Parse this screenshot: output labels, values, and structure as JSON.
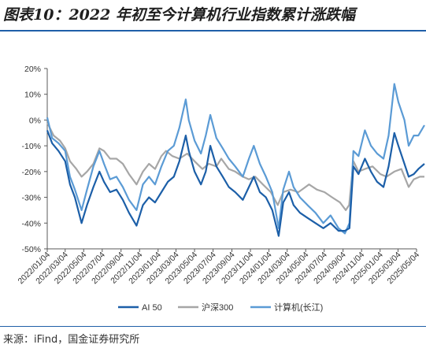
{
  "header": {
    "title": "图表10：2022 年初至今计算机行业指数累计涨跌幅"
  },
  "footer": {
    "source": "来源：iFind，国金证券研究所"
  },
  "colors": {
    "rule": "#1f5fa8",
    "ai50": "#1c5fa8",
    "hs300": "#a6a6a6",
    "computer": "#5b9bd5"
  },
  "chart_data": {
    "type": "line",
    "ylabel": "",
    "xlabel": "",
    "ylim": [
      -50,
      20
    ],
    "yticks": [
      "20%",
      "10%",
      "0%",
      "-10%",
      "-20%",
      "-30%",
      "-40%",
      "-50%"
    ],
    "ytick_values": [
      20,
      10,
      0,
      -10,
      -20,
      -30,
      -40,
      -50
    ],
    "xticks": [
      "2022/01/04",
      "2022/03/04",
      "2022/05/04",
      "2022/07/04",
      "2022/09/04",
      "2022/11/04",
      "2023/01/04",
      "2023/03/04",
      "2023/05/04",
      "2023/07/04",
      "2023/09/04",
      "2023/11/04",
      "2024/01/04",
      "2024/03/04",
      "2024/05/04",
      "2024/07/04",
      "2024/09/04",
      "2024/11/04",
      "2025/01/04",
      "2025/03/04",
      "2025/05/04"
    ],
    "grid": false,
    "legend_position": "bottom",
    "series": [
      {
        "name": "AI 50",
        "color": "#1c5fa8",
        "points": [
          [
            "2022/01/04",
            -4
          ],
          [
            "2022/01/20",
            -9
          ],
          [
            "2022/02/10",
            -12
          ],
          [
            "2022/03/04",
            -16
          ],
          [
            "2022/03/20",
            -25
          ],
          [
            "2022/04/05",
            -30
          ],
          [
            "2022/04/27",
            -40
          ],
          [
            "2022/05/15",
            -33
          ],
          [
            "2022/06/05",
            -26
          ],
          [
            "2022/06/25",
            -20
          ],
          [
            "2022/07/10",
            -24
          ],
          [
            "2022/07/30",
            -28
          ],
          [
            "2022/08/20",
            -27
          ],
          [
            "2022/09/10",
            -31
          ],
          [
            "2022/09/30",
            -36
          ],
          [
            "2022/10/25",
            -41
          ],
          [
            "2022/11/15",
            -33
          ],
          [
            "2022/12/05",
            -30
          ],
          [
            "2022/12/25",
            -32
          ],
          [
            "2023/01/15",
            -28
          ],
          [
            "2023/02/05",
            -24
          ],
          [
            "2023/02/25",
            -22
          ],
          [
            "2023/03/15",
            -16
          ],
          [
            "2023/04/05",
            -6
          ],
          [
            "2023/04/15",
            -12
          ],
          [
            "2023/05/04",
            -20
          ],
          [
            "2023/05/25",
            -25
          ],
          [
            "2023/06/10",
            -20
          ],
          [
            "2023/06/25",
            -10
          ],
          [
            "2023/07/15",
            -18
          ],
          [
            "2023/08/05",
            -22
          ],
          [
            "2023/08/25",
            -26
          ],
          [
            "2023/09/15",
            -28
          ],
          [
            "2023/10/10",
            -31
          ],
          [
            "2023/10/30",
            -26
          ],
          [
            "2023/11/15",
            -22
          ],
          [
            "2023/12/05",
            -28
          ],
          [
            "2023/12/25",
            -30
          ],
          [
            "2024/01/15",
            -35
          ],
          [
            "2024/02/05",
            -45
          ],
          [
            "2024/02/20",
            -32
          ],
          [
            "2024/03/10",
            -28
          ],
          [
            "2024/03/25",
            -33
          ],
          [
            "2024/04/15",
            -36
          ],
          [
            "2024/05/10",
            -38
          ],
          [
            "2024/06/05",
            -40
          ],
          [
            "2024/07/01",
            -42
          ],
          [
            "2024/07/25",
            -40
          ],
          [
            "2024/08/20",
            -43
          ],
          [
            "2024/09/10",
            -43
          ],
          [
            "2024/09/25",
            -42
          ],
          [
            "2024/10/08",
            -18
          ],
          [
            "2024/10/25",
            -21
          ],
          [
            "2024/11/15",
            -15
          ],
          [
            "2024/12/05",
            -20
          ],
          [
            "2024/12/25",
            -24
          ],
          [
            "2025/01/15",
            -26
          ],
          [
            "2025/02/01",
            -18
          ],
          [
            "2025/02/20",
            -5
          ],
          [
            "2025/03/05",
            -10
          ],
          [
            "2025/03/25",
            -17
          ],
          [
            "2025/04/08",
            -22
          ],
          [
            "2025/04/25",
            -21
          ],
          [
            "2025/05/10",
            -19
          ],
          [
            "2025/05/30",
            -17
          ]
        ]
      },
      {
        "name": "沪深300",
        "color": "#a6a6a6",
        "points": [
          [
            "2022/01/04",
            -1
          ],
          [
            "2022/01/25",
            -6
          ],
          [
            "2022/02/15",
            -8
          ],
          [
            "2022/03/04",
            -11
          ],
          [
            "2022/03/20",
            -16
          ],
          [
            "2022/04/10",
            -19
          ],
          [
            "2022/04/27",
            -22
          ],
          [
            "2022/05/15",
            -20
          ],
          [
            "2022/06/05",
            -17
          ],
          [
            "2022/06/25",
            -11
          ],
          [
            "2022/07/10",
            -12
          ],
          [
            "2022/07/30",
            -15
          ],
          [
            "2022/08/20",
            -15
          ],
          [
            "2022/09/10",
            -17
          ],
          [
            "2022/09/30",
            -21
          ],
          [
            "2022/10/25",
            -25
          ],
          [
            "2022/11/15",
            -20
          ],
          [
            "2022/12/05",
            -17
          ],
          [
            "2022/12/25",
            -19
          ],
          [
            "2023/01/15",
            -14
          ],
          [
            "2023/01/30",
            -12
          ],
          [
            "2023/02/20",
            -14
          ],
          [
            "2023/03/15",
            -15
          ],
          [
            "2023/04/10",
            -13
          ],
          [
            "2023/05/04",
            -16
          ],
          [
            "2023/05/30",
            -19
          ],
          [
            "2023/06/20",
            -17
          ],
          [
            "2023/07/15",
            -18
          ],
          [
            "2023/07/31",
            -15
          ],
          [
            "2023/08/25",
            -19
          ],
          [
            "2023/09/15",
            -20
          ],
          [
            "2023/10/10",
            -22
          ],
          [
            "2023/10/30",
            -23
          ],
          [
            "2023/11/20",
            -22
          ],
          [
            "2023/12/15",
            -25
          ],
          [
            "2024/01/10",
            -28
          ],
          [
            "2024/02/02",
            -33
          ],
          [
            "2024/02/20",
            -28
          ],
          [
            "2024/03/15",
            -27
          ],
          [
            "2024/04/10",
            -28
          ],
          [
            "2024/05/15",
            -25
          ],
          [
            "2024/06/10",
            -27
          ],
          [
            "2024/07/05",
            -28
          ],
          [
            "2024/07/30",
            -30
          ],
          [
            "2024/08/25",
            -32
          ],
          [
            "2024/09/13",
            -35
          ],
          [
            "2024/09/24",
            -33
          ],
          [
            "2024/10/08",
            -16
          ],
          [
            "2024/10/25",
            -20
          ],
          [
            "2024/11/15",
            -19
          ],
          [
            "2024/12/10",
            -18
          ],
          [
            "2025/01/05",
            -21
          ],
          [
            "2025/01/25",
            -22
          ],
          [
            "2025/02/20",
            -20
          ],
          [
            "2025/03/15",
            -19
          ],
          [
            "2025/04/08",
            -26
          ],
          [
            "2025/04/25",
            -23
          ],
          [
            "2025/05/15",
            -22
          ],
          [
            "2025/05/30",
            -22
          ]
        ]
      },
      {
        "name": "计算机(长江)",
        "color": "#5b9bd5",
        "points": [
          [
            "2022/01/04",
            1
          ],
          [
            "2022/01/20",
            -7
          ],
          [
            "2022/02/10",
            -9
          ],
          [
            "2022/03/04",
            -12
          ],
          [
            "2022/03/20",
            -22
          ],
          [
            "2022/04/05",
            -27
          ],
          [
            "2022/04/27",
            -35
          ],
          [
            "2022/05/15",
            -27
          ],
          [
            "2022/06/05",
            -18
          ],
          [
            "2022/06/25",
            -12
          ],
          [
            "2022/07/10",
            -17
          ],
          [
            "2022/07/30",
            -23
          ],
          [
            "2022/08/20",
            -22
          ],
          [
            "2022/09/10",
            -26
          ],
          [
            "2022/09/30",
            -31
          ],
          [
            "2022/10/25",
            -35
          ],
          [
            "2022/11/15",
            -25
          ],
          [
            "2022/12/05",
            -22
          ],
          [
            "2022/12/25",
            -25
          ],
          [
            "2023/01/15",
            -18
          ],
          [
            "2023/02/05",
            -12
          ],
          [
            "2023/02/25",
            -10
          ],
          [
            "2023/03/15",
            -3
          ],
          [
            "2023/04/05",
            8
          ],
          [
            "2023/04/15",
            0
          ],
          [
            "2023/05/04",
            -8
          ],
          [
            "2023/05/25",
            -13
          ],
          [
            "2023/06/10",
            -6
          ],
          [
            "2023/06/25",
            2
          ],
          [
            "2023/07/15",
            -7
          ],
          [
            "2023/08/05",
            -11
          ],
          [
            "2023/08/25",
            -15
          ],
          [
            "2023/09/15",
            -18
          ],
          [
            "2023/10/10",
            -22
          ],
          [
            "2023/10/30",
            -15
          ],
          [
            "2023/11/15",
            -10
          ],
          [
            "2023/12/05",
            -17
          ],
          [
            "2023/12/25",
            -22
          ],
          [
            "2024/01/15",
            -28
          ],
          [
            "2024/02/05",
            -42
          ],
          [
            "2024/02/20",
            -27
          ],
          [
            "2024/03/10",
            -20
          ],
          [
            "2024/03/25",
            -26
          ],
          [
            "2024/04/15",
            -30
          ],
          [
            "2024/05/10",
            -33
          ],
          [
            "2024/06/05",
            -36
          ],
          [
            "2024/07/01",
            -40
          ],
          [
            "2024/07/25",
            -37
          ],
          [
            "2024/08/20",
            -42
          ],
          [
            "2024/09/10",
            -44
          ],
          [
            "2024/09/25",
            -40
          ],
          [
            "2024/10/08",
            -12
          ],
          [
            "2024/10/25",
            -14
          ],
          [
            "2024/11/15",
            -4
          ],
          [
            "2024/12/05",
            -10
          ],
          [
            "2024/12/25",
            -13
          ],
          [
            "2025/01/15",
            -15
          ],
          [
            "2025/02/01",
            -6
          ],
          [
            "2025/02/20",
            14
          ],
          [
            "2025/03/05",
            7
          ],
          [
            "2025/03/25",
            0
          ],
          [
            "2025/04/08",
            -10
          ],
          [
            "2025/04/25",
            -6
          ],
          [
            "2025/05/10",
            -6
          ],
          [
            "2025/05/30",
            -2
          ]
        ]
      }
    ]
  }
}
